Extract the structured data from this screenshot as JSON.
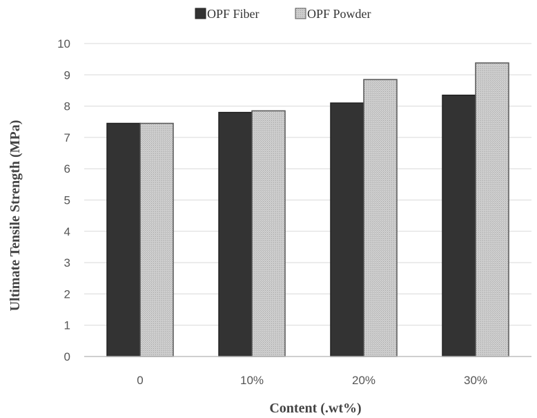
{
  "chart_data": {
    "type": "bar",
    "title": "",
    "xlabel": "Content (.wt%)",
    "ylabel": "Ultimate Tensile Strength (MPa)",
    "categories": [
      "0",
      "10%",
      "20%",
      "30%"
    ],
    "series": [
      {
        "name": "OPF Fiber",
        "values": [
          7.45,
          7.8,
          8.1,
          8.35
        ],
        "color": "#333333"
      },
      {
        "name": "OPF Powder",
        "values": [
          7.45,
          7.85,
          8.85,
          9.38
        ],
        "color": "#c8c8c8"
      }
    ],
    "ylim": [
      0,
      10
    ],
    "yticks": [
      0,
      1,
      2,
      3,
      4,
      5,
      6,
      7,
      8,
      9,
      10
    ],
    "grid": true,
    "legend_position": "top-center"
  }
}
